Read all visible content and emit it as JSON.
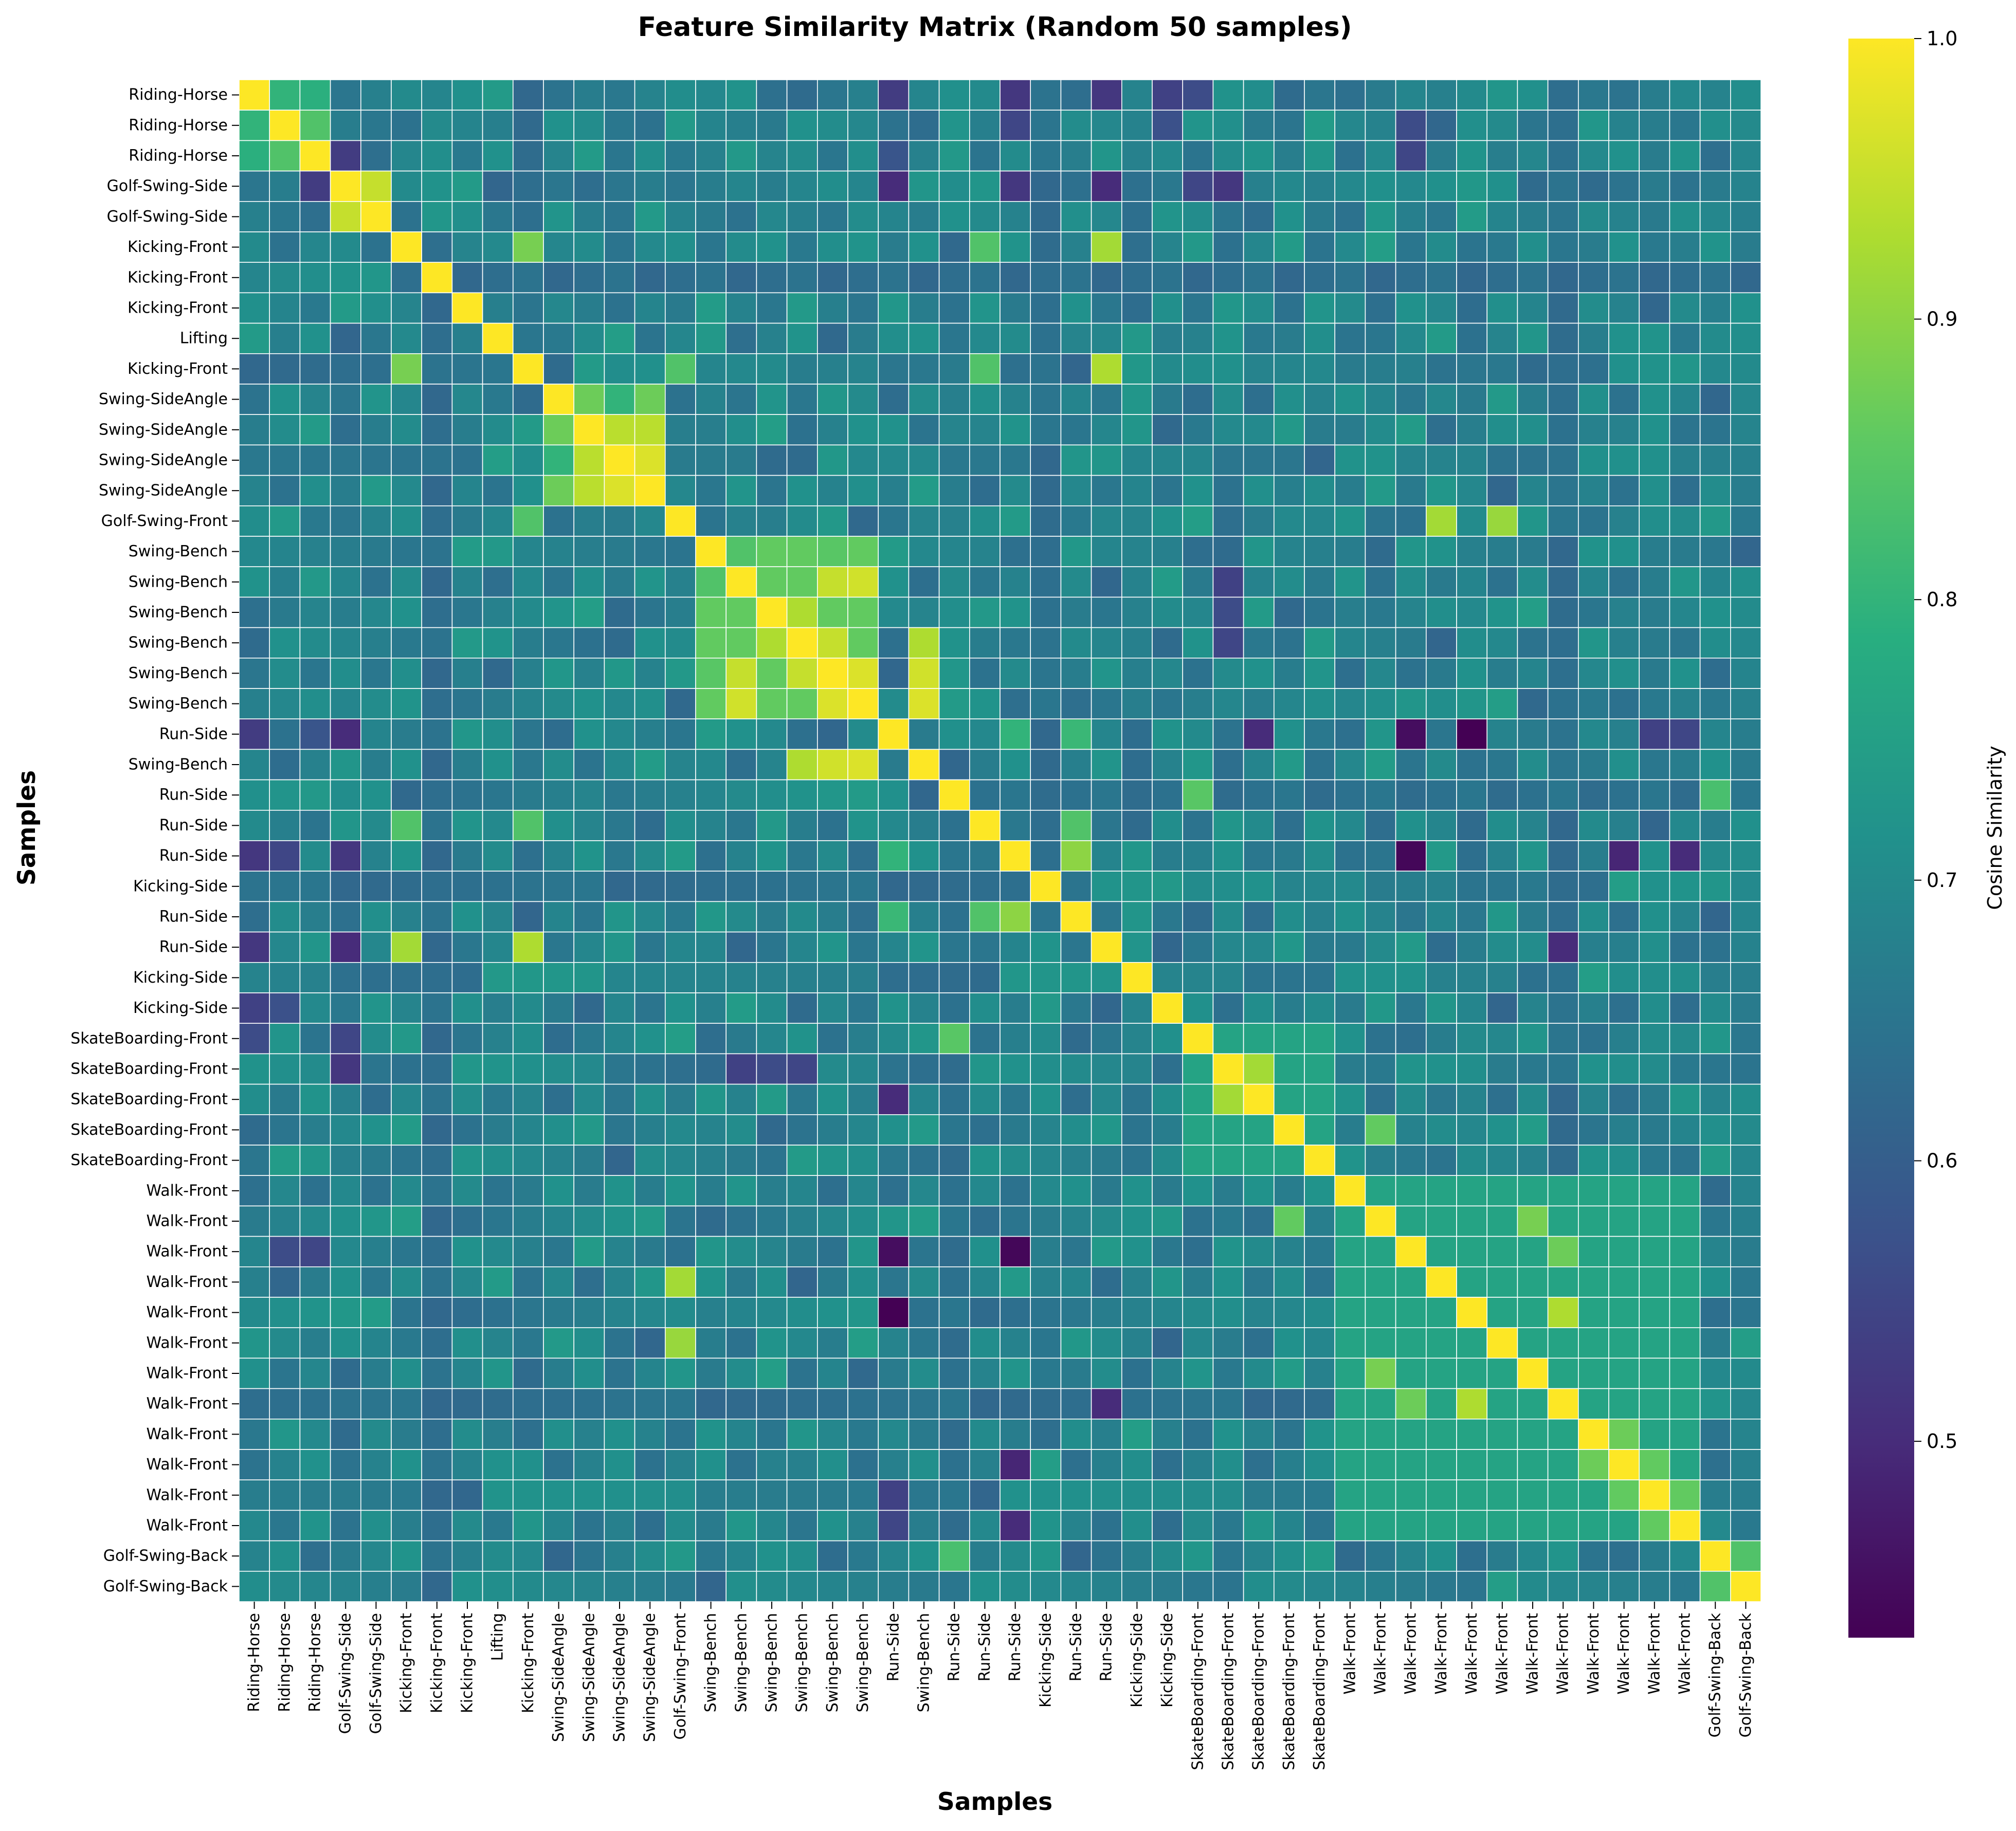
{
  "chart_data": {
    "type": "heatmap",
    "title": "Feature Similarity Matrix (Random 50 samples)",
    "xlabel": "Samples",
    "ylabel": "Samples",
    "colormap": "viridis",
    "colorbar": {
      "label": "Cosine Similarity",
      "range": [
        0.43,
        1.0
      ],
      "ticks": [
        0.5,
        0.6,
        0.7,
        0.8,
        0.9,
        1.0
      ],
      "tick_labels": [
        "0.5",
        "0.6",
        "0.7",
        "0.8",
        "0.9",
        "1.0"
      ]
    },
    "labels": [
      "Riding-Horse",
      "Riding-Horse",
      "Riding-Horse",
      "Golf-Swing-Side",
      "Golf-Swing-Side",
      "Kicking-Front",
      "Kicking-Front",
      "Kicking-Front",
      "Lifting",
      "Kicking-Front",
      "Swing-SideAngle",
      "Swing-SideAngle",
      "Swing-SideAngle",
      "Swing-SideAngle",
      "Golf-Swing-Front",
      "Swing-Bench",
      "Swing-Bench",
      "Swing-Bench",
      "Swing-Bench",
      "Swing-Bench",
      "Swing-Bench",
      "Run-Side",
      "Swing-Bench",
      "Run-Side",
      "Run-Side",
      "Run-Side",
      "Kicking-Side",
      "Run-Side",
      "Run-Side",
      "Kicking-Side",
      "Kicking-Side",
      "SkateBoarding-Front",
      "SkateBoarding-Front",
      "SkateBoarding-Front",
      "SkateBoarding-Front",
      "SkateBoarding-Front",
      "Walk-Front",
      "Walk-Front",
      "Walk-Front",
      "Walk-Front",
      "Walk-Front",
      "Walk-Front",
      "Walk-Front",
      "Walk-Front",
      "Walk-Front",
      "Walk-Front",
      "Walk-Front",
      "Walk-Front",
      "Golf-Swing-Back",
      "Golf-Swing-Back"
    ],
    "matrix_note": "50x50 symmetric cosine-similarity matrix; diagonal = 1.0",
    "default_off_diagonal": 0.68,
    "group_blocks": [
      {
        "from": 0,
        "to": 2,
        "value": 0.8
      },
      {
        "from": 3,
        "to": 4,
        "value": 0.95
      },
      {
        "from": 10,
        "to": 13,
        "value": 0.87
      },
      {
        "from": 15,
        "to": 20,
        "value": 0.86
      },
      {
        "from": 31,
        "to": 35,
        "value": 0.76
      },
      {
        "from": 36,
        "to": 47,
        "value": 0.76
      },
      {
        "from": 48,
        "to": 49,
        "value": 0.84
      }
    ],
    "pairs": [
      [
        0,
        1,
        0.8
      ],
      [
        0,
        2,
        0.79
      ],
      [
        1,
        2,
        0.84
      ],
      [
        3,
        4,
        0.95
      ],
      [
        5,
        9,
        0.88
      ],
      [
        5,
        28,
        0.92
      ],
      [
        9,
        28,
        0.93
      ],
      [
        5,
        24,
        0.84
      ],
      [
        9,
        24,
        0.84
      ],
      [
        9,
        14,
        0.84
      ],
      [
        10,
        11,
        0.87
      ],
      [
        10,
        12,
        0.8
      ],
      [
        11,
        12,
        0.94
      ],
      [
        11,
        13,
        0.94
      ],
      [
        12,
        13,
        0.97
      ],
      [
        14,
        41,
        0.91
      ],
      [
        14,
        39,
        0.92
      ],
      [
        15,
        16,
        0.84
      ],
      [
        15,
        19,
        0.85
      ],
      [
        16,
        19,
        0.95
      ],
      [
        16,
        20,
        0.96
      ],
      [
        17,
        18,
        0.93
      ],
      [
        18,
        19,
        0.95
      ],
      [
        19,
        20,
        0.97
      ],
      [
        20,
        22,
        0.97
      ],
      [
        19,
        22,
        0.96
      ],
      [
        18,
        22,
        0.93
      ],
      [
        21,
        25,
        0.8
      ],
      [
        21,
        27,
        0.81
      ],
      [
        25,
        27,
        0.9
      ],
      [
        23,
        31,
        0.85
      ],
      [
        24,
        27,
        0.84
      ],
      [
        32,
        33,
        0.92
      ],
      [
        34,
        37,
        0.86
      ],
      [
        43,
        40,
        0.93
      ],
      [
        37,
        42,
        0.88
      ],
      [
        38,
        43,
        0.87
      ],
      [
        46,
        47,
        0.86
      ],
      [
        45,
        46,
        0.86
      ],
      [
        44,
        45,
        0.87
      ],
      [
        48,
        49,
        0.84
      ],
      [
        23,
        48,
        0.83
      ],
      [
        21,
        40,
        0.43
      ],
      [
        21,
        38,
        0.45
      ],
      [
        25,
        38,
        0.44
      ],
      [
        21,
        3,
        0.5
      ],
      [
        21,
        0,
        0.53
      ],
      [
        21,
        2,
        0.58
      ],
      [
        25,
        0,
        0.52
      ],
      [
        25,
        1,
        0.55
      ],
      [
        25,
        3,
        0.52
      ],
      [
        28,
        3,
        0.5
      ],
      [
        28,
        0,
        0.52
      ],
      [
        21,
        33,
        0.5
      ],
      [
        25,
        47,
        0.5
      ],
      [
        25,
        45,
        0.49
      ],
      [
        28,
        43,
        0.5
      ],
      [
        21,
        46,
        0.54
      ],
      [
        21,
        47,
        0.55
      ],
      [
        31,
        3,
        0.55
      ],
      [
        31,
        0,
        0.56
      ],
      [
        32,
        3,
        0.52
      ],
      [
        32,
        16,
        0.54
      ],
      [
        32,
        18,
        0.55
      ],
      [
        32,
        17,
        0.56
      ],
      [
        2,
        3,
        0.53
      ],
      [
        2,
        38,
        0.55
      ],
      [
        1,
        38,
        0.56
      ],
      [
        0,
        30,
        0.54
      ],
      [
        1,
        30,
        0.57
      ]
    ]
  }
}
